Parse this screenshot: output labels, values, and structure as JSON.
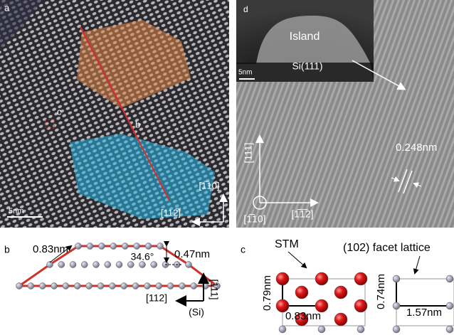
{
  "panels": {
    "a": {
      "label": "a",
      "marker": "c",
      "line_label": "b",
      "scale_bar": "5nm",
      "dir_vertical": "[1̅10]",
      "dir_horizontal": "[112̅]"
    },
    "d": {
      "label": "d",
      "island": "Island",
      "scale_bar": "5nm",
      "substrate": "Si(111)",
      "spacing": "0.248nm",
      "dir_vertical": "[111]",
      "dir_out": "[1̅10]",
      "dir_horizontal": "[1̅1̅2]"
    },
    "b": {
      "label": "b",
      "edge": "0.83nm",
      "angle": "34.6°",
      "height": "0.47nm",
      "dir_horizontal": "[112]",
      "dir_vertical": "[111]",
      "material": "(Si)"
    },
    "c": {
      "label": "c",
      "stm": "STM",
      "facet": "(102) facet lattice",
      "stm_height": "0.79nm",
      "stm_width": "0.83nm",
      "facet_height": "0.74nm",
      "facet_width": "1.57nm"
    }
  }
}
